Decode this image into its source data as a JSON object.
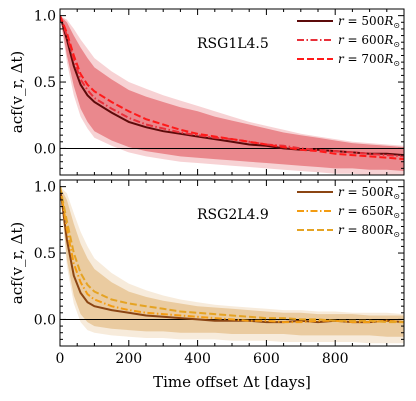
{
  "figure": {
    "xlabel": "Time offset Δt [days]",
    "xticks": [
      "0",
      "200",
      "400",
      "600",
      "800"
    ]
  },
  "chart_data": [
    {
      "type": "line",
      "title": "RSG1L4.5",
      "ylabel": "acf(v_r, Δt)",
      "xlim": [
        0,
        1000
      ],
      "ylim": [
        -0.2,
        1.05
      ],
      "yticks": [
        "1.0",
        "0.5",
        "0.0"
      ],
      "zero_line": true,
      "series": [
        {
          "name_prefix": "r = ",
          "name_value": "500",
          "name_unit": "R",
          "name_sub": "⊙",
          "color": "#5c0a0a",
          "dash": "solid",
          "x": [
            0,
            20,
            40,
            60,
            80,
            100,
            150,
            200,
            250,
            300,
            350,
            400,
            450,
            500,
            550,
            600,
            650,
            700,
            750,
            800,
            850,
            900,
            950,
            1000
          ],
          "y": [
            1.0,
            0.82,
            0.62,
            0.48,
            0.4,
            0.35,
            0.27,
            0.2,
            0.16,
            0.13,
            0.11,
            0.09,
            0.07,
            0.05,
            0.03,
            0.02,
            0.0,
            -0.01,
            -0.01,
            -0.02,
            -0.03,
            -0.04,
            -0.04,
            -0.05
          ]
        },
        {
          "name_prefix": "r = ",
          "name_value": "600",
          "name_unit": "R",
          "name_sub": "⊙",
          "color": "#e8303a",
          "dash": "dashdot",
          "x": [
            0,
            20,
            40,
            60,
            80,
            100,
            150,
            200,
            250,
            300,
            350,
            400,
            450,
            500,
            550,
            600,
            650,
            700,
            750,
            800,
            850,
            900,
            950,
            1000
          ],
          "y": [
            1.0,
            0.85,
            0.67,
            0.52,
            0.44,
            0.38,
            0.3,
            0.23,
            0.18,
            0.15,
            0.12,
            0.1,
            0.08,
            0.07,
            0.05,
            0.03,
            0.02,
            0.0,
            -0.01,
            -0.02,
            -0.03,
            -0.04,
            -0.05,
            -0.06
          ]
        },
        {
          "name_prefix": "r = ",
          "name_value": "700",
          "name_unit": "R",
          "name_sub": "⊙",
          "color": "#ff1a1a",
          "dash": "dashed",
          "x": [
            0,
            20,
            40,
            60,
            80,
            100,
            150,
            200,
            250,
            300,
            350,
            400,
            450,
            500,
            550,
            600,
            650,
            700,
            750,
            800,
            850,
            900,
            950,
            1000
          ],
          "y": [
            1.0,
            0.87,
            0.7,
            0.56,
            0.48,
            0.43,
            0.35,
            0.28,
            0.22,
            0.18,
            0.14,
            0.11,
            0.09,
            0.07,
            0.05,
            0.03,
            0.01,
            -0.01,
            -0.02,
            -0.04,
            -0.05,
            -0.06,
            -0.07,
            -0.08
          ]
        }
      ],
      "band": {
        "color": "#e04a52",
        "x": [
          0,
          20,
          40,
          60,
          80,
          100,
          150,
          200,
          250,
          300,
          350,
          400,
          450,
          500,
          550,
          600,
          650,
          700,
          750,
          800,
          850,
          900,
          950,
          1000
        ],
        "outer_upper": [
          1.0,
          0.97,
          0.9,
          0.82,
          0.75,
          0.68,
          0.58,
          0.5,
          0.45,
          0.4,
          0.36,
          0.32,
          0.28,
          0.24,
          0.2,
          0.17,
          0.14,
          0.11,
          0.09,
          0.07,
          0.05,
          0.04,
          0.03,
          0.02
        ],
        "outer_lower": [
          1.0,
          0.65,
          0.4,
          0.24,
          0.15,
          0.08,
          0.02,
          -0.03,
          -0.06,
          -0.08,
          -0.1,
          -0.11,
          -0.12,
          -0.13,
          -0.14,
          -0.15,
          -0.16,
          -0.17,
          -0.18,
          -0.19,
          -0.19,
          -0.2,
          -0.2,
          -0.2
        ],
        "upper": [
          1.0,
          0.95,
          0.85,
          0.76,
          0.68,
          0.61,
          0.52,
          0.44,
          0.39,
          0.35,
          0.31,
          0.28,
          0.24,
          0.21,
          0.18,
          0.15,
          0.12,
          0.1,
          0.08,
          0.06,
          0.04,
          0.03,
          0.02,
          0.01
        ],
        "lower": [
          1.0,
          0.7,
          0.47,
          0.3,
          0.2,
          0.13,
          0.06,
          0.01,
          -0.02,
          -0.04,
          -0.06,
          -0.07,
          -0.08,
          -0.09,
          -0.1,
          -0.11,
          -0.12,
          -0.13,
          -0.14,
          -0.15,
          -0.15,
          -0.16,
          -0.16,
          -0.17
        ]
      }
    },
    {
      "type": "line",
      "title": "RSG2L4.9",
      "ylabel": "acf(v_r, Δt)",
      "xlim": [
        0,
        1000
      ],
      "ylim": [
        -0.2,
        1.05
      ],
      "yticks": [
        "1.0",
        "0.5",
        "0.0"
      ],
      "zero_line": true,
      "series": [
        {
          "name_prefix": "r = ",
          "name_value": "500",
          "name_unit": "R",
          "name_sub": "⊙",
          "color": "#8b4513",
          "dash": "solid",
          "x": [
            0,
            20,
            40,
            60,
            80,
            100,
            150,
            200,
            250,
            300,
            350,
            400,
            450,
            500,
            550,
            600,
            650,
            700,
            750,
            800,
            850,
            900,
            950,
            1000
          ],
          "y": [
            1.0,
            0.6,
            0.33,
            0.2,
            0.13,
            0.1,
            0.07,
            0.05,
            0.03,
            0.02,
            0.01,
            0.0,
            -0.01,
            -0.01,
            -0.01,
            -0.02,
            -0.02,
            -0.01,
            -0.02,
            -0.01,
            -0.02,
            -0.02,
            -0.01,
            -0.02
          ]
        },
        {
          "name_prefix": "r = ",
          "name_value": "650",
          "name_unit": "R",
          "name_sub": "⊙",
          "color": "#f39c12",
          "dash": "dashdot",
          "x": [
            0,
            20,
            40,
            60,
            80,
            100,
            150,
            200,
            250,
            300,
            350,
            400,
            450,
            500,
            550,
            600,
            650,
            700,
            750,
            800,
            850,
            900,
            950,
            1000
          ],
          "y": [
            1.0,
            0.68,
            0.42,
            0.28,
            0.19,
            0.15,
            0.1,
            0.07,
            0.05,
            0.04,
            0.03,
            0.02,
            0.01,
            0.0,
            -0.01,
            -0.01,
            -0.02,
            -0.02,
            -0.01,
            -0.01,
            -0.02,
            -0.02,
            -0.01,
            -0.02
          ]
        },
        {
          "name_prefix": "r = ",
          "name_value": "800",
          "name_unit": "R",
          "name_sub": "⊙",
          "color": "#e5a323",
          "dash": "dashed",
          "x": [
            0,
            20,
            40,
            60,
            80,
            100,
            150,
            200,
            250,
            300,
            350,
            400,
            450,
            500,
            550,
            600,
            650,
            700,
            750,
            800,
            850,
            900,
            950,
            1000
          ],
          "y": [
            1.0,
            0.74,
            0.5,
            0.35,
            0.26,
            0.21,
            0.15,
            0.12,
            0.1,
            0.08,
            0.06,
            0.05,
            0.04,
            0.03,
            0.02,
            0.01,
            0.01,
            0.0,
            0.0,
            -0.01,
            -0.01,
            -0.01,
            -0.02,
            -0.02
          ]
        }
      ],
      "band": {
        "color": "#e0b070",
        "x": [
          0,
          20,
          40,
          60,
          80,
          100,
          150,
          200,
          250,
          300,
          350,
          400,
          450,
          500,
          550,
          600,
          650,
          700,
          750,
          800,
          850,
          900,
          950,
          1000
        ],
        "outer_upper": [
          1.0,
          0.95,
          0.8,
          0.66,
          0.55,
          0.46,
          0.35,
          0.27,
          0.22,
          0.18,
          0.15,
          0.13,
          0.11,
          0.1,
          0.09,
          0.08,
          0.07,
          0.07,
          0.06,
          0.06,
          0.05,
          0.05,
          0.05,
          0.04
        ],
        "outer_lower": [
          1.0,
          0.4,
          0.12,
          -0.02,
          -0.08,
          -0.1,
          -0.12,
          -0.13,
          -0.14,
          -0.14,
          -0.15,
          -0.15,
          -0.15,
          -0.16,
          -0.16,
          -0.16,
          -0.17,
          -0.17,
          -0.17,
          -0.17,
          -0.17,
          -0.18,
          -0.18,
          -0.18
        ],
        "upper": [
          1.0,
          0.9,
          0.72,
          0.57,
          0.46,
          0.38,
          0.28,
          0.21,
          0.17,
          0.14,
          0.12,
          0.1,
          0.09,
          0.08,
          0.07,
          0.06,
          0.05,
          0.05,
          0.04,
          0.04,
          0.04,
          0.03,
          0.03,
          0.03
        ],
        "lower": [
          1.0,
          0.45,
          0.18,
          0.04,
          -0.02,
          -0.05,
          -0.07,
          -0.08,
          -0.09,
          -0.09,
          -0.1,
          -0.1,
          -0.1,
          -0.11,
          -0.11,
          -0.11,
          -0.11,
          -0.12,
          -0.12,
          -0.12,
          -0.12,
          -0.12,
          -0.13,
          -0.13
        ]
      }
    }
  ]
}
